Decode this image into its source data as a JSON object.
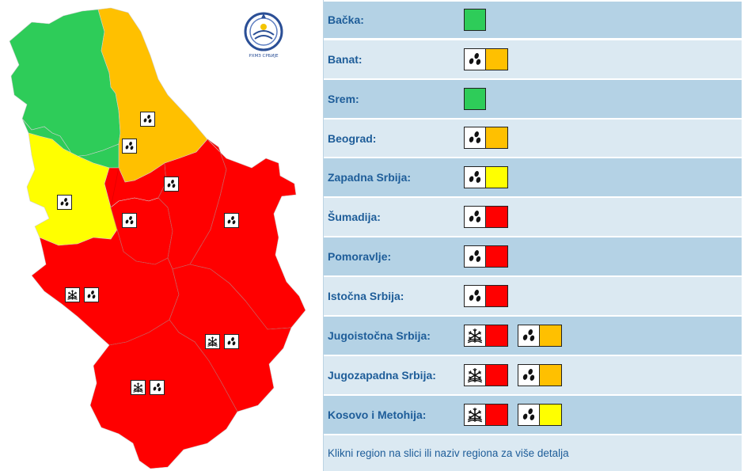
{
  "colors": {
    "green": "#2ecc59",
    "orange": "#ffc000",
    "yellow": "#ffff00",
    "red": "#ff0000",
    "row_dark": "#b4d2e5",
    "row_light": "#dbe9f2",
    "text_blue": "#1e5d99"
  },
  "icons": {
    "rain": "rain-icon",
    "snow": "snow-icon",
    "logo": "rhmz-logo-icon"
  },
  "logo": {
    "caption": "РХМЗ СРБИЈЕ"
  },
  "regions": [
    {
      "name": "Bačka:",
      "warnings": [
        {
          "icon": "none",
          "level": "green"
        }
      ]
    },
    {
      "name": "Banat:",
      "warnings": [
        {
          "icon": "rain",
          "level": "orange"
        }
      ]
    },
    {
      "name": "Srem:",
      "warnings": [
        {
          "icon": "none",
          "level": "green"
        }
      ]
    },
    {
      "name": "Beograd:",
      "warnings": [
        {
          "icon": "rain",
          "level": "orange"
        }
      ]
    },
    {
      "name": "Zapadna Srbija:",
      "warnings": [
        {
          "icon": "rain",
          "level": "yellow"
        }
      ]
    },
    {
      "name": "Šumadija:",
      "warnings": [
        {
          "icon": "rain",
          "level": "red"
        }
      ]
    },
    {
      "name": "Pomoravlje:",
      "warnings": [
        {
          "icon": "rain",
          "level": "red"
        }
      ]
    },
    {
      "name": "Istočna Srbija:",
      "warnings": [
        {
          "icon": "rain",
          "level": "red"
        }
      ]
    },
    {
      "name": "Jugoistočna Srbija:",
      "warnings": [
        {
          "icon": "snow",
          "level": "red"
        },
        {
          "icon": "rain",
          "level": "orange"
        }
      ]
    },
    {
      "name": "Jugozapadna Srbija:",
      "warnings": [
        {
          "icon": "snow",
          "level": "red"
        },
        {
          "icon": "rain",
          "level": "orange"
        }
      ]
    },
    {
      "name": "Kosovo i Metohija:",
      "warnings": [
        {
          "icon": "snow",
          "level": "red"
        },
        {
          "icon": "rain",
          "level": "yellow"
        }
      ]
    }
  ],
  "footer": {
    "text": "Klikni region na slici ili naziv regiona za više detalja"
  }
}
